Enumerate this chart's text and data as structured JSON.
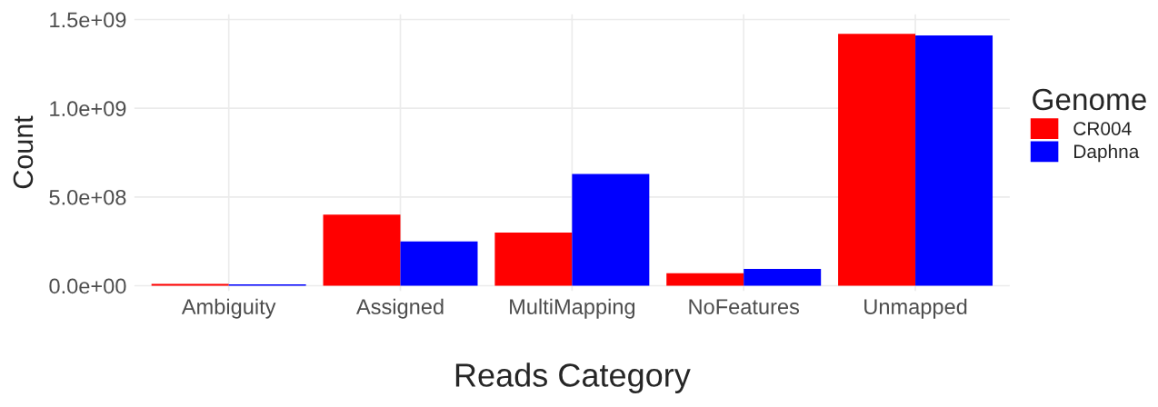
{
  "chart_data": {
    "type": "bar",
    "xlabel": "Reads Category",
    "ylabel": "Count",
    "legend_title": "Genome",
    "categories": [
      "Ambiguity",
      "Assigned",
      "MultiMapping",
      "NoFeatures",
      "Unmapped"
    ],
    "series": [
      {
        "name": "CR004",
        "color": "#ff0000",
        "values": [
          10000000,
          400000000,
          300000000,
          70000000,
          1420000000
        ]
      },
      {
        "name": "Daphna",
        "color": "#0000ff",
        "values": [
          8000000,
          250000000,
          630000000,
          95000000,
          1410000000
        ]
      }
    ],
    "ylim": [
      -30000000,
      1530000000
    ],
    "yticks": [
      {
        "value": 0,
        "label": "0.0e+00"
      },
      {
        "value": 500000000,
        "label": "5.0e+08"
      },
      {
        "value": 1000000000,
        "label": "1.0e+09"
      },
      {
        "value": 1500000000,
        "label": "1.5e+09"
      }
    ],
    "grid": true,
    "legend": "right"
  }
}
